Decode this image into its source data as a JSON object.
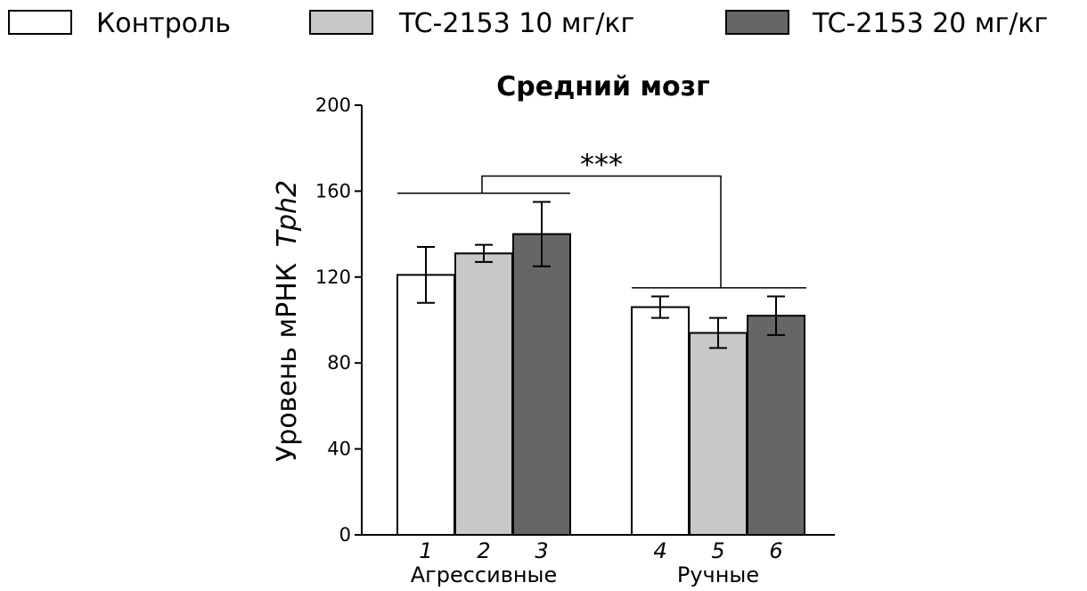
{
  "chart_data": {
    "type": "bar",
    "title": "Средний мозг",
    "ylabel": "Уровень мРНК",
    "ylabel_gene": "Tph2",
    "ylim": [
      0,
      200
    ],
    "yticks": [
      "0",
      "40",
      "80",
      "120",
      "160",
      "200"
    ],
    "ytick_values": [
      0,
      40,
      80,
      120,
      160,
      200
    ],
    "legend_position": "top",
    "grid": false,
    "series": [
      {
        "name": "Контроль",
        "color": "#ffffff"
      },
      {
        "name": "TC-2153 10 мг/кг",
        "color": "#c8c8c8"
      },
      {
        "name": "TC-2153 20 мг/кг",
        "color": "#666666"
      }
    ],
    "groups": [
      {
        "label": "Агрессивные",
        "bars": [
          {
            "number": "1",
            "series": 0,
            "value": 121,
            "error": 13
          },
          {
            "number": "2",
            "series": 1,
            "value": 131,
            "error": 4
          },
          {
            "number": "3",
            "series": 2,
            "value": 140,
            "error": 15
          }
        ]
      },
      {
        "label": "Ручные",
        "bars": [
          {
            "number": "4",
            "series": 0,
            "value": 106,
            "error": 5
          },
          {
            "number": "5",
            "series": 1,
            "value": 94,
            "error": 7
          },
          {
            "number": "6",
            "series": 2,
            "value": 102,
            "error": 9
          }
        ]
      }
    ],
    "significance": {
      "label": "***",
      "group_line_values": [
        159,
        115
      ],
      "top_value": 167
    }
  }
}
